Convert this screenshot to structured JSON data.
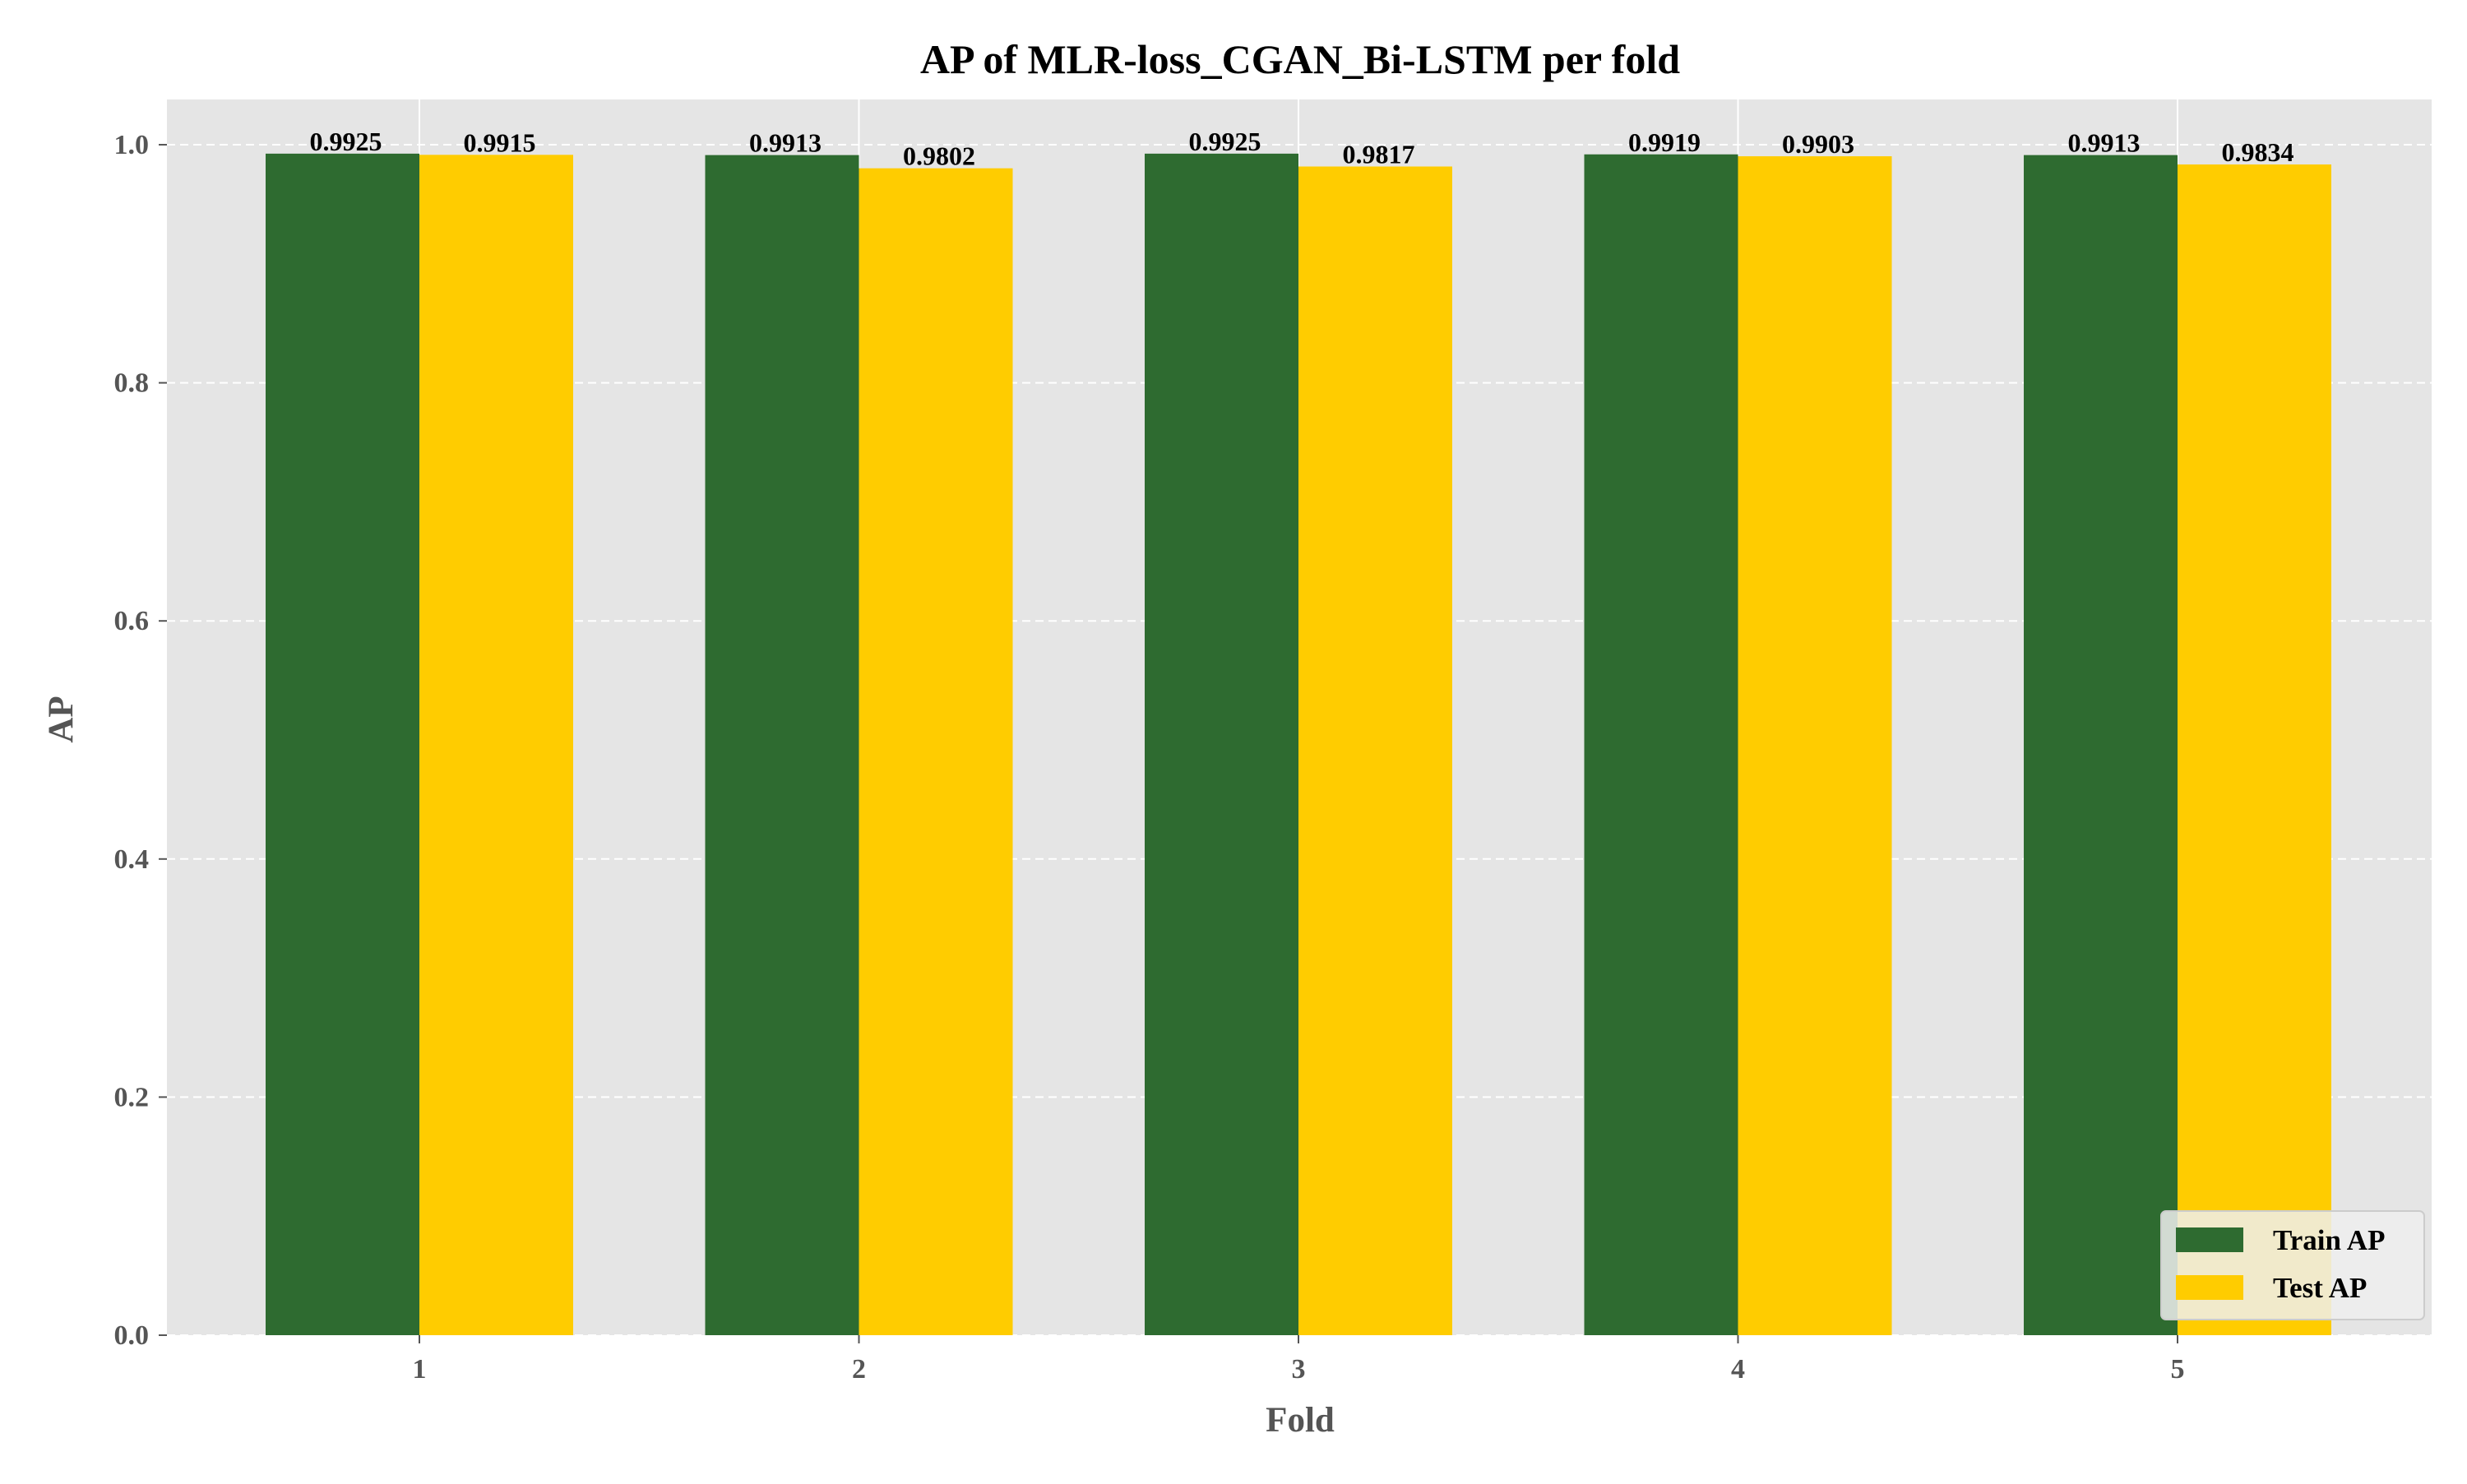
{
  "chart_data": {
    "type": "bar",
    "title": "AP of MLR-loss_CGAN_Bi-LSTM per fold",
    "xlabel": "Fold",
    "ylabel": "AP",
    "categories": [
      "1",
      "2",
      "3",
      "4",
      "5"
    ],
    "series": [
      {
        "name": "Train AP",
        "color": "#2e6b30",
        "values": [
          0.9925,
          0.9913,
          0.9925,
          0.9919,
          0.9913
        ],
        "labels": [
          "0.9925",
          "0.9913",
          "0.9925",
          "0.9919",
          "0.9913"
        ]
      },
      {
        "name": "Test AP",
        "color": "#ffcc00",
        "values": [
          0.9915,
          0.9802,
          0.9817,
          0.9903,
          0.9834
        ],
        "labels": [
          "0.9915",
          "0.9802",
          "0.9817",
          "0.9903",
          "0.9834"
        ]
      }
    ],
    "ylim": [
      0,
      1.038
    ],
    "yticks": [
      0.0,
      0.2,
      0.4,
      0.6,
      0.8,
      1.0
    ],
    "ytick_labels": [
      "0.0",
      "0.2",
      "0.4",
      "0.6",
      "0.8",
      "1.0"
    ],
    "grid": true,
    "grid_style": "dashed",
    "legend_position": "lower-right",
    "plot_background": "#e5e5e5"
  }
}
